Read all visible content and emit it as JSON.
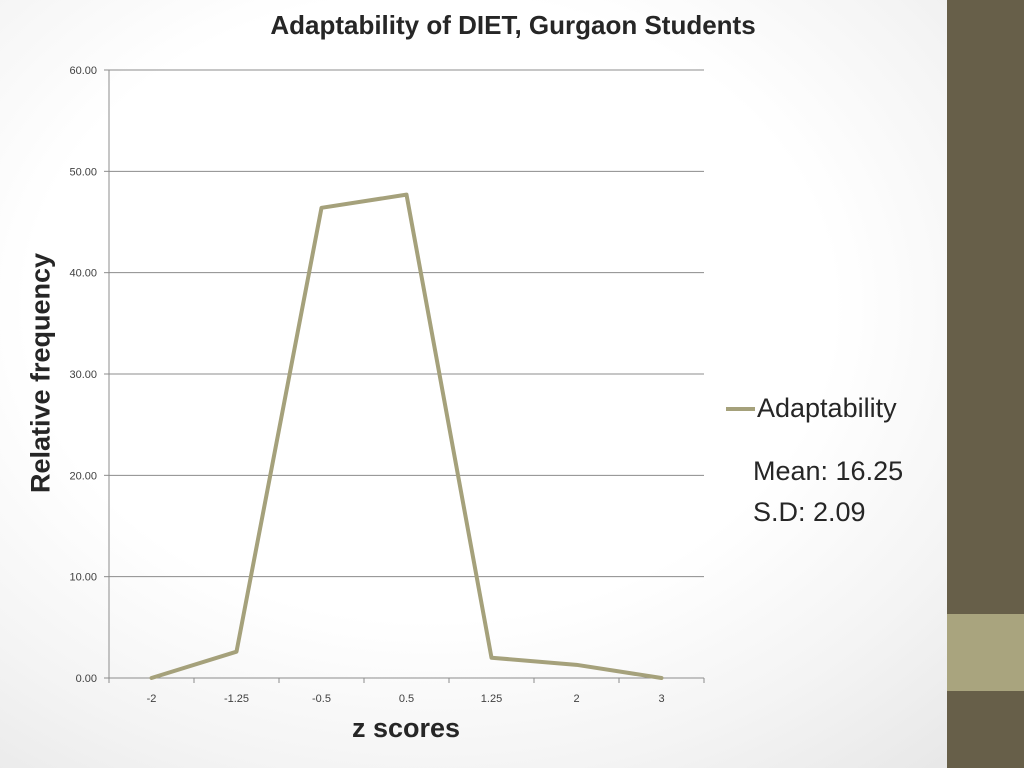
{
  "slide": {
    "sidebar_color": "#675f49",
    "sidebar_accent_color": "#a9a47e"
  },
  "chart_data": {
    "type": "line",
    "title": "Adaptability of DIET, Gurgaon Students",
    "xlabel": "z scores",
    "ylabel": "Relative frequency",
    "categories": [
      "-2",
      "-1.25",
      "-0.5",
      "0.5",
      "1.25",
      "2",
      "3"
    ],
    "series": [
      {
        "name": "Adaptability",
        "color": "#a5a17b",
        "values": [
          0.0,
          2.6,
          46.4,
          47.7,
          2.0,
          1.3,
          0.0
        ]
      }
    ],
    "ylim": [
      0,
      60
    ],
    "yticks": [
      "0.00",
      "10.00",
      "20.00",
      "30.00",
      "40.00",
      "50.00",
      "60.00"
    ],
    "grid": true,
    "legend_position": "right",
    "annotations": {
      "mean": "Mean: 16.25",
      "sd": "S.D: 2.09"
    }
  }
}
